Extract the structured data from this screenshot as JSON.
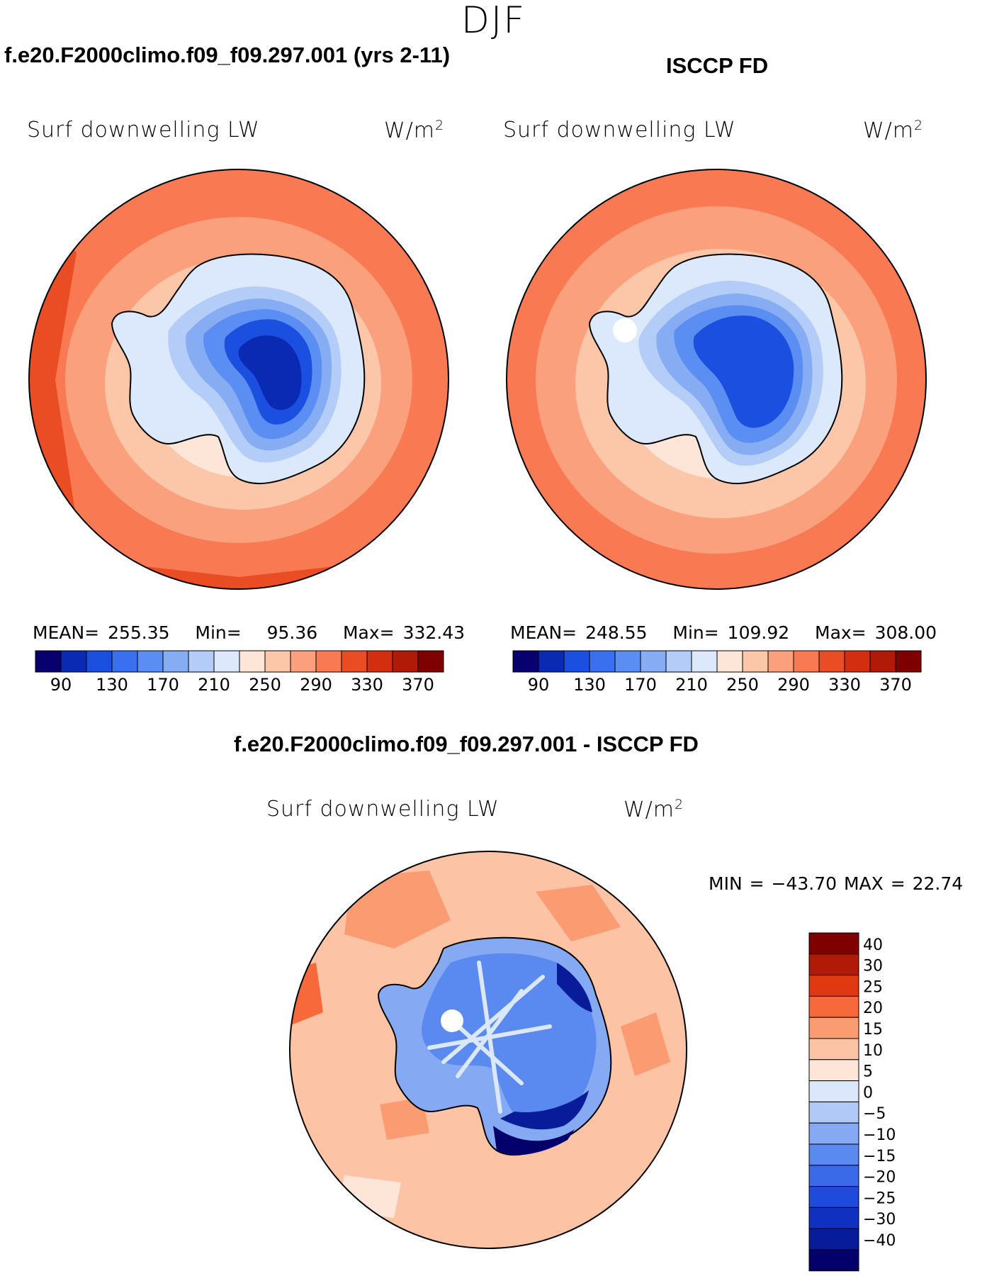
{
  "figure": {
    "season": "DJF",
    "variable": "Surf downwelling LW",
    "units": "W/m",
    "units_exp": "2"
  },
  "panels": [
    {
      "title": "f.e20.F2000climo.f09_f09.297.001 (yrs 2-11)",
      "mean_label": "MEAN=",
      "mean": "255.35",
      "min_label": "Min=",
      "min": "95.36",
      "max_label": "Max=",
      "max": "332.43"
    },
    {
      "title": "ISCCP FD",
      "mean_label": "MEAN=",
      "mean": "248.55",
      "min_label": "Min=",
      "min": "109.92",
      "max_label": "Max=",
      "max": "308.00"
    },
    {
      "title": "f.e20.F2000climo.f09_f09.297.001 - ISCCP FD",
      "min_text": "MIN = −43.70 MAX =   22.74"
    }
  ],
  "chart_data": [
    {
      "type": "heatmap",
      "projection": "south-polar-stereographic",
      "title": "f.e20.F2000climo.f09_f09.297.001 (yrs 2-11)",
      "variable": "Surf downwelling LW",
      "units": "W/m2",
      "mean": 255.35,
      "min": 95.36,
      "max": 332.43,
      "colorbar": {
        "levels": [
          90,
          110,
          130,
          150,
          170,
          190,
          210,
          230,
          250,
          270,
          290,
          310,
          330,
          350,
          370
        ],
        "tick_labels": [
          "90",
          "130",
          "170",
          "210",
          "250",
          "290",
          "330",
          "370"
        ],
        "colors": [
          "#08006e",
          "#0a2ab4",
          "#1a4fe0",
          "#3a6ff0",
          "#5b8ef2",
          "#86acf4",
          "#b3cdf8",
          "#dce9fc",
          "#fde6d8",
          "#fcc6a8",
          "#fba07c",
          "#f97a52",
          "#ea4d23",
          "#d42e10",
          "#b11a07",
          "#7f0000"
        ]
      }
    },
    {
      "type": "heatmap",
      "projection": "south-polar-stereographic",
      "title": "ISCCP FD",
      "variable": "Surf downwelling LW",
      "units": "W/m2",
      "mean": 248.55,
      "min": 109.92,
      "max": 308.0,
      "colorbar": {
        "levels": [
          90,
          110,
          130,
          150,
          170,
          190,
          210,
          230,
          250,
          270,
          290,
          310,
          330,
          350,
          370
        ],
        "tick_labels": [
          "90",
          "130",
          "170",
          "210",
          "250",
          "290",
          "330",
          "370"
        ],
        "colors": [
          "#08006e",
          "#0a2ab4",
          "#1a4fe0",
          "#3a6ff0",
          "#5b8ef2",
          "#86acf4",
          "#b3cdf8",
          "#dce9fc",
          "#fde6d8",
          "#fcc6a8",
          "#fba07c",
          "#f97a52",
          "#ea4d23",
          "#d42e10",
          "#b11a07",
          "#7f0000"
        ]
      }
    },
    {
      "type": "heatmap",
      "projection": "south-polar-stereographic",
      "title": "f.e20.F2000climo.f09_f09.297.001 - ISCCP FD",
      "variable": "Surf downwelling LW",
      "units": "W/m2",
      "min": -43.7,
      "max": 22.74,
      "colorbar": {
        "tick_labels": [
          "40",
          "30",
          "25",
          "20",
          "15",
          "10",
          "5",
          "0",
          "−5",
          "−10",
          "−15",
          "−20",
          "−25",
          "−30",
          "−40"
        ],
        "colors": [
          "#7f0000",
          "#b11a07",
          "#e0390f",
          "#f7683a",
          "#fb9b72",
          "#fcc4a4",
          "#fde6d8",
          "#dbe8fc",
          "#b0c9f7",
          "#86a9f3",
          "#5a8aef",
          "#3a6ae8",
          "#1f4bdc",
          "#1030c0",
          "#081c9a",
          "#04006b"
        ]
      }
    }
  ]
}
